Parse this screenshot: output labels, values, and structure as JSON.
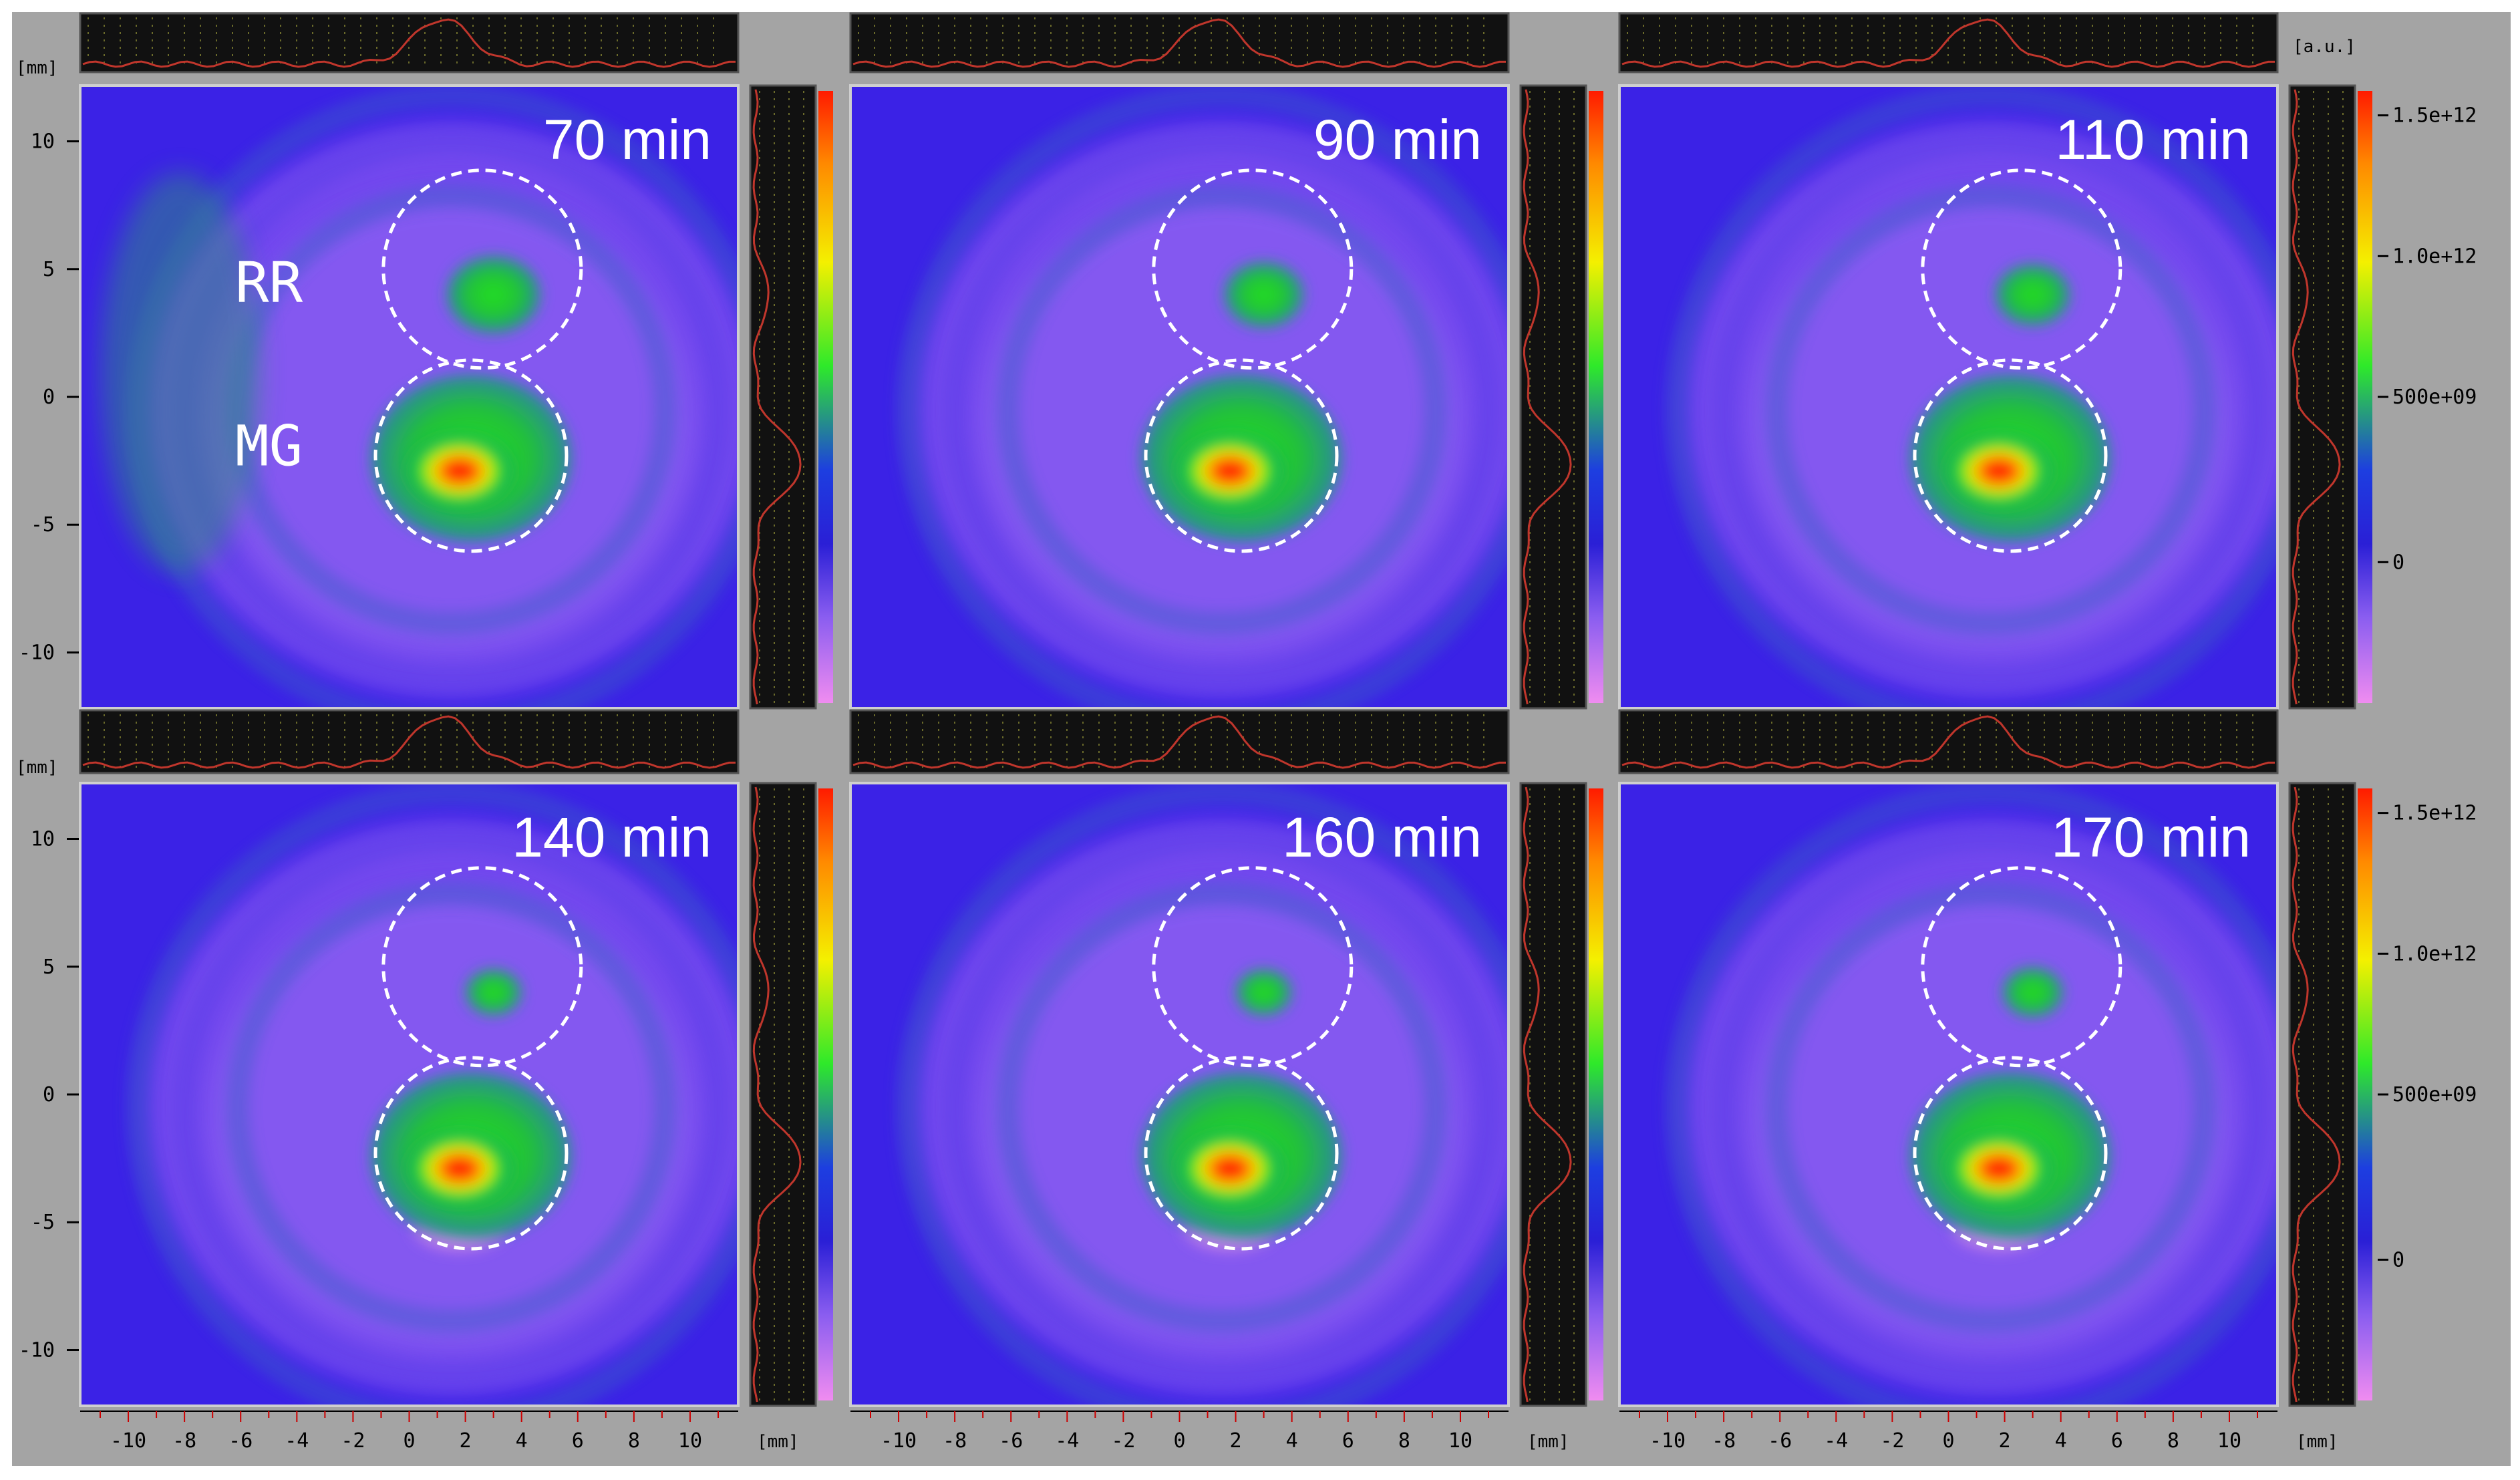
{
  "units": {
    "mm": "[mm]",
    "au": "[a.u.]"
  },
  "axis": {
    "y_ticks": [
      "10",
      "5",
      "0",
      "-5",
      "-10"
    ],
    "x_ticks": [
      "-10",
      "-8",
      "-6",
      "-4",
      "-2",
      "0",
      "2",
      "4",
      "6",
      "8",
      "10"
    ]
  },
  "colorbar": {
    "ticks": [
      "1.5e+12",
      "1.0e+12",
      "500e+09",
      "0"
    ]
  },
  "colors": {
    "background": "#a4a4a4",
    "map_base": "#3b22e6",
    "hot": "#ff1800",
    "profile": "#c0362c"
  },
  "labels": {
    "rr": "RR",
    "mg": "MG"
  },
  "panels": [
    {
      "time": "70 min"
    },
    {
      "time": "90 min"
    },
    {
      "time": "110 min"
    },
    {
      "time": "140 min"
    },
    {
      "time": "160 min"
    },
    {
      "time": "170 min"
    }
  ]
}
